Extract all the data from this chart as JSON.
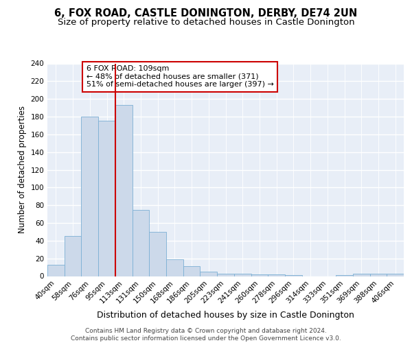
{
  "title1": "6, FOX ROAD, CASTLE DONINGTON, DERBY, DE74 2UN",
  "title2": "Size of property relative to detached houses in Castle Donington",
  "xlabel": "Distribution of detached houses by size in Castle Donington",
  "ylabel": "Number of detached properties",
  "bin_labels": [
    "40sqm",
    "58sqm",
    "76sqm",
    "95sqm",
    "113sqm",
    "131sqm",
    "150sqm",
    "168sqm",
    "186sqm",
    "205sqm",
    "223sqm",
    "241sqm",
    "260sqm",
    "278sqm",
    "296sqm",
    "314sqm",
    "333sqm",
    "351sqm",
    "369sqm",
    "388sqm",
    "406sqm"
  ],
  "bar_heights": [
    13,
    45,
    180,
    175,
    193,
    75,
    50,
    19,
    11,
    5,
    3,
    3,
    2,
    2,
    1,
    0,
    0,
    1,
    3,
    3,
    3
  ],
  "bar_color": "#ccd9ea",
  "bar_edge_color": "#7bafd4",
  "vline_color": "#cc0000",
  "annotation_text": "6 FOX ROAD: 109sqm\n← 48% of detached houses are smaller (371)\n51% of semi-detached houses are larger (397) →",
  "annotation_box_color": "white",
  "annotation_box_edge_color": "#cc0000",
  "ylim": [
    0,
    240
  ],
  "yticks": [
    0,
    20,
    40,
    60,
    80,
    100,
    120,
    140,
    160,
    180,
    200,
    220,
    240
  ],
  "footer_text": "Contains HM Land Registry data © Crown copyright and database right 2024.\nContains public sector information licensed under the Open Government Licence v3.0.",
  "bg_color": "#e8eef7",
  "grid_color": "#ffffff",
  "title1_fontsize": 10.5,
  "title2_fontsize": 9.5,
  "xlabel_fontsize": 9,
  "ylabel_fontsize": 8.5,
  "tick_fontsize": 7.5,
  "annotation_fontsize": 8,
  "footer_fontsize": 6.5
}
